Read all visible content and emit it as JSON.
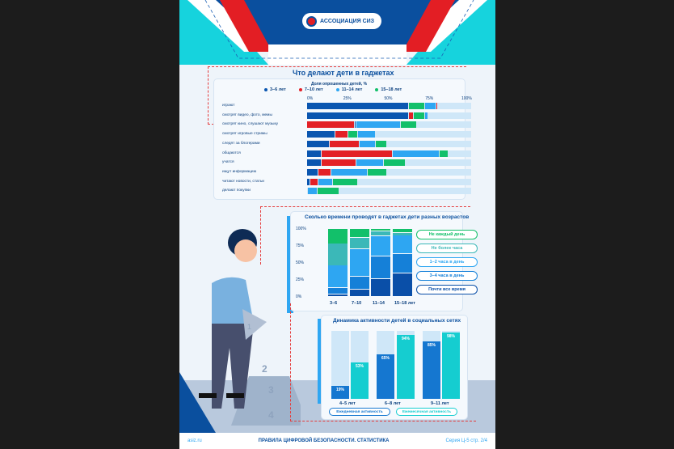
{
  "header": {
    "org": "АССОЦИАЦИЯ СИЗ"
  },
  "footer": {
    "site": "asiz.ru",
    "title": "ПРАВИЛА ЦИФРОВОЙ БЕЗОПАСНОСТИ. СТАТИСТИКА",
    "series": "Серия Ц-5 стр. 2/4"
  },
  "colors": {
    "g0": "#0a56b0",
    "g1": "#e32026",
    "g2": "#2ea6f2",
    "g3": "#12c06a",
    "track": "#cfe7f8"
  },
  "illustration": {
    "steps": [
      "1",
      "2",
      "3",
      "4"
    ]
  },
  "chart_data": [
    {
      "type": "bar",
      "orientation": "horizontal",
      "stacked": true,
      "title": "Что делают дети в гаджетах",
      "subtitle": "Доля опрошенных детей, %",
      "legend": [
        "3–6 лет",
        "7–10 лет",
        "11–14 лет",
        "15–18 лет"
      ],
      "ticks": [
        "0%",
        "25%",
        "50%",
        "75%",
        "100%"
      ],
      "xlim": [
        0,
        100
      ],
      "categories": [
        "играют",
        "смотрят видео, фото, мемы",
        "смотрят кино, слушают музыку",
        "смотрят игровые стримы",
        "следят за блогерами",
        "общаются",
        "учатся",
        "ищут информацию",
        "читают новости, статьи",
        "делают покупки"
      ],
      "rows": [
        [
          [
            0,
            62
          ],
          [
            3,
            10
          ],
          [
            2,
            7
          ],
          [
            1,
            1
          ]
        ],
        [
          [
            0,
            62
          ],
          [
            1,
            3
          ],
          [
            3,
            7
          ],
          [
            2,
            2
          ]
        ],
        [
          [
            1,
            29
          ],
          [
            0,
            1
          ],
          [
            2,
            27
          ],
          [
            3,
            10
          ]
        ],
        [
          [
            0,
            17
          ],
          [
            1,
            8
          ],
          [
            3,
            6
          ],
          [
            2,
            11
          ]
        ],
        [
          [
            0,
            14
          ],
          [
            1,
            18
          ],
          [
            2,
            10
          ],
          [
            3,
            7
          ]
        ],
        [
          [
            0,
            9
          ],
          [
            1,
            43
          ],
          [
            2,
            29
          ],
          [
            3,
            5
          ]
        ],
        [
          [
            0,
            9
          ],
          [
            1,
            21
          ],
          [
            2,
            17
          ],
          [
            3,
            13
          ]
        ],
        [
          [
            0,
            7
          ],
          [
            1,
            8
          ],
          [
            2,
            22
          ],
          [
            3,
            12
          ]
        ],
        [
          [
            0,
            2
          ],
          [
            1,
            5
          ],
          [
            2,
            9
          ],
          [
            3,
            15
          ]
        ],
        [
          [
            2,
            6
          ],
          [
            3,
            13
          ]
        ]
      ]
    },
    {
      "type": "bar",
      "stacked": true,
      "title": "Сколько времени проводят в гаджетах дети разных возрастов",
      "categories": [
        "3–6",
        "7–10",
        "11–14",
        "15–18 лет"
      ],
      "yticks": [
        "0%",
        "25%",
        "50%",
        "75%",
        "100%"
      ],
      "ylim": [
        0,
        100
      ],
      "series": [
        {
          "name": "Почти все время",
          "color": "#0a4fa8",
          "values": [
            4,
            11,
            26,
            35
          ]
        },
        {
          "name": "3–4 часа в день",
          "color": "#1580d8",
          "values": [
            9,
            19,
            34,
            28
          ]
        },
        {
          "name": "1–2 часа в день",
          "color": "#2ea6f2",
          "values": [
            33,
            40,
            29,
            27
          ]
        },
        {
          "name": "Не более часа",
          "color": "#3bb8b8",
          "values": [
            32,
            17,
            8,
            4
          ]
        },
        {
          "name": "Не каждый день",
          "color": "#12c06a",
          "values": [
            22,
            13,
            3,
            6
          ]
        }
      ]
    },
    {
      "type": "bar",
      "title": "Динамика активности детей в социальных сетях",
      "categories": [
        "4–5 лет",
        "6–8 лет",
        "9–11 лет"
      ],
      "ylim": [
        0,
        100
      ],
      "series": [
        {
          "name": "Ежедневная активность",
          "color": "#1577d0",
          "values": [
            19,
            65,
            85
          ],
          "labels": [
            "19%",
            "65%",
            "85%"
          ]
        },
        {
          "name": "Ежемесячная активность",
          "color": "#15cdd0",
          "values": [
            53,
            94,
            98
          ],
          "labels": [
            "53%",
            "94%",
            "98%"
          ]
        }
      ]
    }
  ]
}
